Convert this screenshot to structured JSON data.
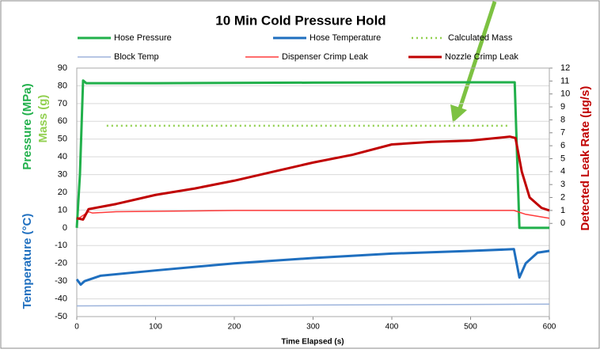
{
  "chart_data": {
    "type": "line",
    "title": "10 Min Cold Pressure Hold",
    "xlabel": "Time Elapsed (s)",
    "ylabels": [
      {
        "text": "Pressure (MPa)",
        "color": "#21b04b"
      },
      {
        "text": "Mass (g)",
        "color": "#92d050"
      },
      {
        "text": "Temperature (°C)",
        "color": "#1f6fbf"
      }
    ],
    "y2label": {
      "text": "Detected Leak Rate (µg/s)",
      "color": "#c00000"
    },
    "xlim": [
      0,
      600
    ],
    "xticks": [
      0,
      100,
      200,
      300,
      400,
      500,
      600
    ],
    "ylim": [
      -50,
      90
    ],
    "yticks": [
      -50,
      -40,
      -30,
      -20,
      -10,
      0,
      10,
      20,
      30,
      40,
      50,
      60,
      70,
      80,
      90
    ],
    "y2lim": [
      -7.2,
      12
    ],
    "y2ticks": [
      0,
      1,
      2,
      3,
      4,
      5,
      6,
      7,
      8,
      9,
      10,
      11,
      12
    ],
    "grid": true,
    "series": [
      {
        "name": "Hose Pressure",
        "color": "#21b04b",
        "x": [
          0,
          4,
          8,
          12,
          100,
          300,
          500,
          556,
          562,
          600
        ],
        "values": [
          0,
          30,
          83,
          81.5,
          81.5,
          81.8,
          82,
          82,
          0,
          0
        ]
      },
      {
        "name": "Hose Temperature",
        "color": "#1f6fbf",
        "x": [
          0,
          5,
          10,
          30,
          100,
          200,
          300,
          400,
          500,
          555,
          562,
          570,
          585,
          600
        ],
        "values": [
          -29,
          -32,
          -30,
          -27,
          -24,
          -20,
          -17,
          -14.5,
          -13,
          -12,
          -28,
          -20,
          -14,
          -13
        ]
      },
      {
        "name": "Calculated Mass",
        "color": "#92d050",
        "dash": "dotted",
        "x": [
          38,
          550
        ],
        "values": [
          57.5,
          57.5
        ]
      },
      {
        "name": "Block Temp",
        "color": "#9db4dc",
        "x": [
          0,
          300,
          600
        ],
        "values": [
          -44,
          -43.5,
          -43
        ]
      },
      {
        "name": "Dispenser Crimp Leak",
        "color": "#ff3b3b",
        "axis": "y2",
        "x": [
          0,
          5,
          15,
          20,
          50,
          200,
          555,
          570,
          600
        ],
        "values": [
          0.3,
          0.5,
          0.9,
          0.8,
          0.9,
          1.0,
          1.0,
          0.7,
          0.4
        ]
      },
      {
        "name": "Nozzle Crimp Leak",
        "color": "#c00000",
        "axis": "y2",
        "x": [
          0,
          8,
          15,
          50,
          100,
          150,
          200,
          250,
          300,
          350,
          400,
          450,
          500,
          550,
          557,
          565,
          575,
          590,
          600
        ],
        "values": [
          0.4,
          0.3,
          1.1,
          1.5,
          2.2,
          2.7,
          3.3,
          4.0,
          4.7,
          5.3,
          6.1,
          6.3,
          6.4,
          6.7,
          6.6,
          4,
          2,
          1.2,
          1.0
        ]
      }
    ]
  }
}
